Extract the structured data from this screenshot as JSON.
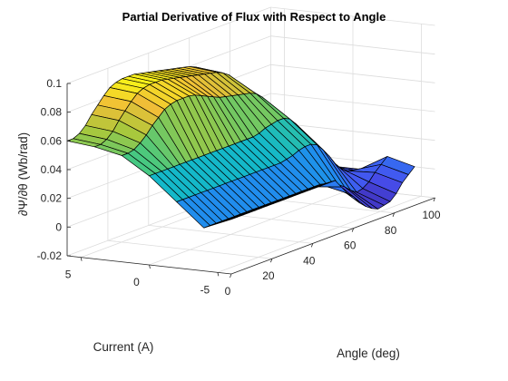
{
  "chart_data": {
    "type": "surface",
    "title": "Partial Derivative of Flux with Respect to Angle",
    "xlabel": "Angle (deg)",
    "ylabel": "Current (A)",
    "zlabel": "∂Ψ/∂θ (Wb/rad)",
    "xlim": [
      0,
      100
    ],
    "ylim": [
      -6,
      6
    ],
    "zlim": [
      -0.02,
      0.1
    ],
    "x_ticks": [
      "0",
      "20",
      "40",
      "60",
      "80",
      "100"
    ],
    "y_ticks": [
      "-5",
      "0",
      "5"
    ],
    "z_ticks": [
      "-0.02",
      "0",
      "0.02",
      "0.04",
      "0.06",
      "0.08",
      "0.1"
    ],
    "grid": true,
    "colormap": "parula",
    "current_values": [
      -6,
      -4,
      -2,
      0,
      2,
      4,
      6
    ],
    "angle_values": [
      0,
      3,
      6,
      9,
      12,
      15,
      18,
      21,
      24,
      27,
      30,
      33,
      36,
      39,
      42,
      45,
      48,
      51,
      54,
      57,
      60,
      63,
      66,
      69,
      72,
      75,
      78,
      81,
      84,
      87,
      90
    ],
    "z_values": [
      [
        0.018,
        0.018,
        0.018,
        0.018,
        0.018,
        0.018,
        0.018,
        0.018,
        0.018,
        0.018,
        0.018,
        0.018,
        0.018,
        0.018,
        0.018,
        0.018,
        0.018,
        0.018,
        0.012,
        0.006,
        0.002,
        -0.004,
        -0.008,
        -0.011,
        -0.013,
        -0.012,
        -0.011,
        -0.007,
        -0.001,
        0.003,
        0.007
      ],
      [
        0.01,
        0.01,
        0.01,
        0.01,
        0.01,
        0.01,
        0.01,
        0.01,
        0.01,
        0.01,
        0.01,
        0.01,
        0.01,
        0.01,
        0.01,
        0.01,
        0.01,
        0.01,
        0.01,
        0.01,
        0.009,
        0.008,
        0.005,
        0.002,
        -0.002,
        -0.005,
        -0.004,
        -0.001,
        0.004,
        0.008,
        0.012
      ],
      [
        0.026,
        0.026,
        0.026,
        0.026,
        0.026,
        0.026,
        0.026,
        0.026,
        0.026,
        0.026,
        0.026,
        0.026,
        0.026,
        0.026,
        0.026,
        0.026,
        0.026,
        0.026,
        0.027,
        0.028,
        0.03,
        0.031,
        0.031,
        0.029,
        0.024,
        0.018,
        0.011,
        0.006,
        0.003,
        0.002,
        0.001
      ],
      [
        0.042,
        0.042,
        0.042,
        0.042,
        0.042,
        0.042,
        0.042,
        0.042,
        0.042,
        0.042,
        0.042,
        0.042,
        0.042,
        0.042,
        0.042,
        0.042,
        0.042,
        0.042,
        0.043,
        0.045,
        0.046,
        0.047,
        0.047,
        0.045,
        0.04,
        0.032,
        0.023,
        0.014,
        0.007,
        0.003,
        0.001
      ],
      [
        0.054,
        0.054,
        0.055,
        0.058,
        0.062,
        0.067,
        0.071,
        0.075,
        0.077,
        0.078,
        0.078,
        0.078,
        0.077,
        0.075,
        0.073,
        0.071,
        0.069,
        0.068,
        0.067,
        0.066,
        0.065,
        0.064,
        0.062,
        0.058,
        0.051,
        0.041,
        0.03,
        0.019,
        0.01,
        0.004,
        0.001
      ],
      [
        0.058,
        0.058,
        0.06,
        0.064,
        0.07,
        0.075,
        0.08,
        0.084,
        0.086,
        0.087,
        0.087,
        0.087,
        0.086,
        0.085,
        0.084,
        0.083,
        0.082,
        0.081,
        0.08,
        0.079,
        0.078,
        0.076,
        0.073,
        0.067,
        0.058,
        0.046,
        0.033,
        0.021,
        0.011,
        0.005,
        0.001
      ],
      [
        0.06,
        0.06,
        0.062,
        0.066,
        0.072,
        0.077,
        0.082,
        0.086,
        0.088,
        0.089,
        0.089,
        0.089,
        0.088,
        0.087,
        0.086,
        0.085,
        0.084,
        0.083,
        0.082,
        0.081,
        0.08,
        0.078,
        0.075,
        0.069,
        0.06,
        0.048,
        0.034,
        0.022,
        0.012,
        0.005,
        0.001
      ]
    ]
  }
}
